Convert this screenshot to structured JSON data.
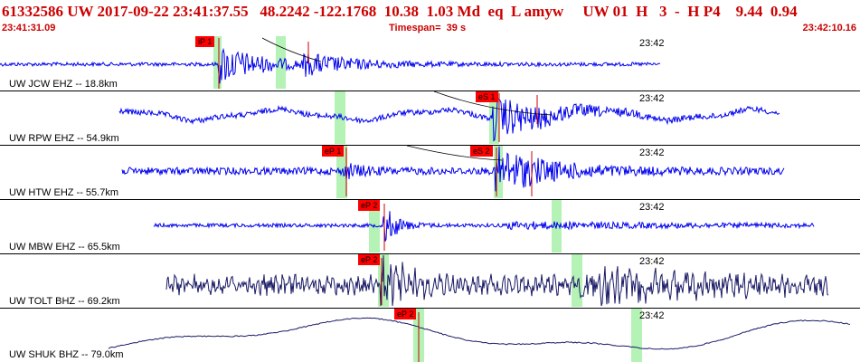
{
  "header": {
    "line1": "61332586 UW 2017-09-22 23:41:37.55   48.2242 -122.1768  10.38  1.03 Md  eq  L amyw     UW 01  H   3  -  H P4    9.44  0.94",
    "start_time": "23:41:31.09",
    "timespan": "Timespan=  39 s",
    "end_time": "23:42:10.16"
  },
  "colors": {
    "header_text": "#cc0000",
    "trace_blue": "#0000ee",
    "trace_dark": "#1a1a66",
    "pick_box": "#ff0000",
    "window_band": "#a8f0a8"
  },
  "traces": [
    {
      "station": "UW JCW EHZ -- 18.8km",
      "time_mark": "23:42",
      "color": "dark_blue",
      "picks": [
        {
          "label": "iP 1"
        }
      ]
    },
    {
      "station": "UW RPW EHZ -- 54.9km",
      "time_mark": "23:42",
      "color": "blue",
      "picks": [
        {
          "label": "eS 1"
        }
      ]
    },
    {
      "station": "UW HTW EHZ -- 55.7km",
      "time_mark": "23:42",
      "color": "blue",
      "picks": [
        {
          "label": "eP 1"
        },
        {
          "label": "eS 2"
        }
      ]
    },
    {
      "station": "UW MBW EHZ -- 65.5km",
      "time_mark": "23:42",
      "color": "blue",
      "picks": [
        {
          "label": "eP 2"
        }
      ]
    },
    {
      "station": "UW TOLT BHZ -- 69.2km",
      "time_mark": "23:42",
      "color": "dark",
      "picks": [
        {
          "label": "eP 2"
        }
      ]
    },
    {
      "station": "UW SHUK BHZ -- 79.0km",
      "time_mark": "23:42",
      "color": "dark_blue",
      "picks": [
        {
          "label": "eP 2"
        }
      ]
    }
  ]
}
